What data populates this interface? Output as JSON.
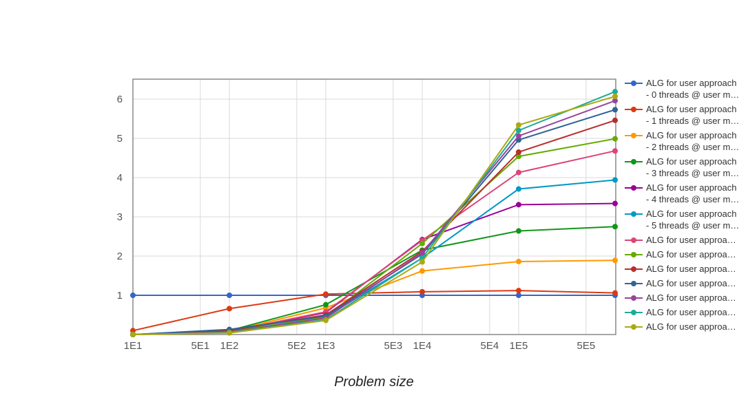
{
  "chart_data": {
    "type": "line",
    "xlabel": "Problem size",
    "ylabel": "",
    "x_scale": "log",
    "xlim": [
      10,
      1000000
    ],
    "ylim": [
      0,
      6.5
    ],
    "grid": true,
    "legend_position": "right",
    "x_ticks": [
      {
        "value": 10,
        "label": "1E1"
      },
      {
        "value": 50,
        "label": "5E1"
      },
      {
        "value": 100,
        "label": "1E2"
      },
      {
        "value": 500,
        "label": "5E2"
      },
      {
        "value": 1000,
        "label": "1E3"
      },
      {
        "value": 5000,
        "label": "5E3"
      },
      {
        "value": 10000,
        "label": "1E4"
      },
      {
        "value": 50000,
        "label": "5E4"
      },
      {
        "value": 100000,
        "label": "1E5"
      },
      {
        "value": 500000,
        "label": "5E5"
      }
    ],
    "y_ticks": [
      {
        "value": 1,
        "label": "1"
      },
      {
        "value": 2,
        "label": "2"
      },
      {
        "value": 3,
        "label": "3"
      },
      {
        "value": 4,
        "label": "4"
      },
      {
        "value": 5,
        "label": "5"
      },
      {
        "value": 6,
        "label": "6"
      }
    ],
    "x": [
      10,
      100,
      1000,
      10000,
      100000,
      1000000
    ],
    "series": [
      {
        "name": "ALG for user approach - 0 threads @ user m…",
        "legend_lines": [
          "ALG for user approach",
          "- 0 threads @ user m…"
        ],
        "color": "#3366cc",
        "values": [
          1.0,
          1.0,
          1.0,
          1.0,
          1.0,
          1.0
        ]
      },
      {
        "name": "ALG for user approach - 1 threads @ user m…",
        "legend_lines": [
          "ALG for user approach",
          "- 1 threads @ user m…"
        ],
        "color": "#dc3912",
        "values": [
          0.1,
          0.66,
          1.03,
          1.09,
          1.12,
          1.06
        ]
      },
      {
        "name": "ALG for user approach - 2 threads @ user m…",
        "legend_lines": [
          "ALG for user approach",
          "- 2 threads @ user m…"
        ],
        "color": "#ff9900",
        "values": [
          0.0,
          0.08,
          0.68,
          1.62,
          1.86,
          1.89
        ]
      },
      {
        "name": "ALG for user approach - 3 threads @ user m…",
        "legend_lines": [
          "ALG for user approach",
          "- 3 threads @ user m…"
        ],
        "color": "#109618",
        "values": [
          0.0,
          0.1,
          0.76,
          2.15,
          2.64,
          2.75
        ]
      },
      {
        "name": "ALG for user approach - 4 threads @ user m…",
        "legend_lines": [
          "ALG for user approach",
          "- 4 threads @ user m…"
        ],
        "color": "#990099",
        "values": [
          0.0,
          0.08,
          0.56,
          2.42,
          3.31,
          3.34
        ]
      },
      {
        "name": "ALG for user approach - 5 threads @ user m…",
        "legend_lines": [
          "ALG for user approach",
          "- 5 threads @ user m…"
        ],
        "color": "#0099c6",
        "values": [
          0.0,
          0.07,
          0.45,
          1.95,
          3.71,
          3.94
        ]
      },
      {
        "name": "ALG for user approa…",
        "legend_lines": [
          "ALG for user approa…"
        ],
        "color": "#dd4477",
        "values": [
          0.0,
          0.08,
          0.58,
          2.4,
          4.13,
          4.68
        ]
      },
      {
        "name": "ALG for user approa…",
        "legend_lines": [
          "ALG for user approa…"
        ],
        "color": "#66aa00",
        "values": [
          0.0,
          0.07,
          0.45,
          2.32,
          4.54,
          4.99
        ]
      },
      {
        "name": "ALG for user approa…",
        "legend_lines": [
          "ALG for user approa…"
        ],
        "color": "#b82e2e",
        "values": [
          0.0,
          0.1,
          0.5,
          2.12,
          4.65,
          5.46
        ]
      },
      {
        "name": "ALG for user approa…",
        "legend_lines": [
          "ALG for user approa…"
        ],
        "color": "#316395",
        "values": [
          0.0,
          0.13,
          0.47,
          2.05,
          4.96,
          5.73
        ]
      },
      {
        "name": "ALG for user approa…",
        "legend_lines": [
          "ALG for user approa…"
        ],
        "color": "#994499",
        "values": [
          0.0,
          0.06,
          0.42,
          2.08,
          5.06,
          5.96
        ]
      },
      {
        "name": "ALG for user approa…",
        "legend_lines": [
          "ALG for user approa…"
        ],
        "color": "#22aa99",
        "values": [
          0.0,
          0.05,
          0.38,
          1.95,
          5.2,
          6.19
        ]
      },
      {
        "name": "ALG for user approa…",
        "legend_lines": [
          "ALG for user approa…"
        ],
        "color": "#aaaa11",
        "values": [
          0.0,
          0.04,
          0.36,
          1.85,
          5.34,
          6.07
        ]
      }
    ]
  }
}
